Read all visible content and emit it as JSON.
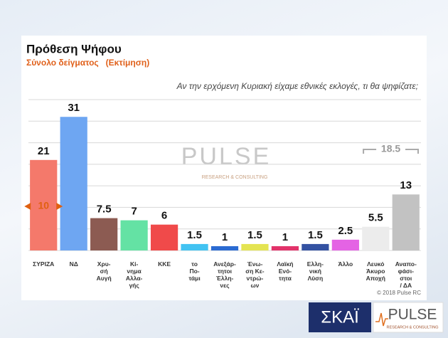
{
  "chart_data": {
    "type": "bar",
    "title": "Πρόθεση Ψήφου",
    "subtitle": "Σύνολο δείγματος   (Εκτίμηση)",
    "question": "Αν την ερχόμενη Κυριακή είχαμε εθνικές εκλογές, τι θα ψηφίζατε;",
    "categories": [
      "ΣΥΡΙΖΑ",
      "ΝΔ",
      "Χρυ-\nσή\nΑυγή",
      "Κί-\nνημα\nΑλλα-\nγής",
      "ΚΚΕ",
      "το\nΠο-\nτάμι",
      "Ανεξάρ-\nτητοι\nΈλλη-\nνες",
      "Ένω-\nση Κε-\nντρώ-\nων",
      "Λαϊκή\nΕνό-\nτητα",
      "Ελλη-\nνική\nΛύση",
      "Άλλο",
      "Λευκό\nΆκυρο\nΑποχή",
      "Αναπο-\nφάσι-\nστοι\n/ ΔΑ"
    ],
    "values": [
      21,
      31,
      7.5,
      7,
      6,
      1.5,
      1,
      1.5,
      1,
      1.5,
      2.5,
      5.5,
      13
    ],
    "colors": [
      "#f4796b",
      "#6ea6f2",
      "#8c5b52",
      "#64e2a4",
      "#f04a4a",
      "#42c3f2",
      "#2b6bd2",
      "#e4e452",
      "#e2336a",
      "#3452a2",
      "#e463e4",
      "#ececec",
      "#c2c2c2"
    ],
    "ylim": [
      0,
      35
    ],
    "yticks": [
      0,
      5,
      10,
      15,
      20,
      25,
      30,
      35
    ],
    "grid": true,
    "annotations": [
      "10",
      "18.5"
    ],
    "watermark": "PULSE",
    "watermark_sub": "RESEARCH & CONSULTING",
    "copyright": "© 2018 Pulse RC",
    "logo_left": "ΣΚΑΪ",
    "logo_right": "PULSE",
    "logo_right_sub": "RESEARCH & CONSULTING"
  }
}
